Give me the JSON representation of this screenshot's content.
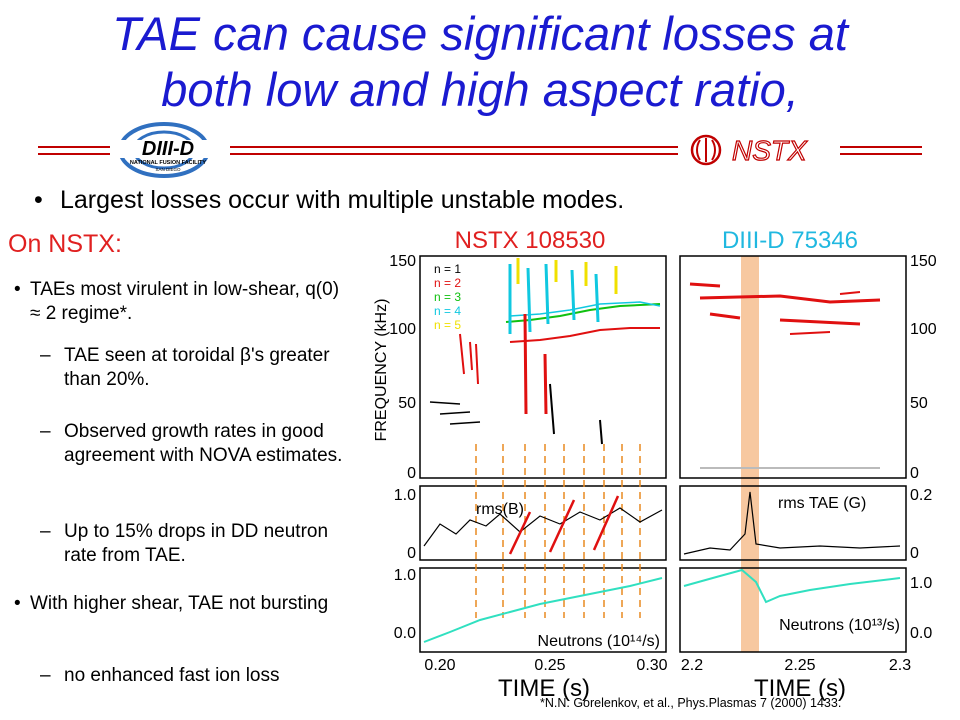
{
  "slide": {
    "title_line1": "TAE can cause significant losses at",
    "title_line2": "both low and high aspect ratio,",
    "logo_left_text": "DIII-D",
    "logo_left_subtext": "NATIONAL FUSION FACILITY",
    "logo_left_subtext2": "SAN DIEGO",
    "logo_right_text": "NSTX",
    "main_bullet": "Largest losses occur with multiple unstable modes.",
    "on_nstx": "On NSTX:",
    "bullets": [
      {
        "text": "TAEs most virulent in low-shear, q(0) ≈ 2 regime*.",
        "sub": [
          "TAE seen at toroidal β's greater than 20%.",
          "Observed growth rates in good agreement with NOVA estimates.",
          "Up to 15% drops in DD neutron rate from TAE."
        ]
      },
      {
        "text": "With higher shear, TAE not bursting",
        "sub": [
          "no enhanced fast ion loss"
        ]
      }
    ],
    "citation": "*N.N. Gorelenkov, et al., Phys.Plasmas 7 (2000) 1433."
  },
  "figure": {
    "left_title": "NSTX 108530",
    "right_title": "DIII-D 75346",
    "ylabel": "FREQUENCY (kHz)",
    "xlabel": "TIME (s)",
    "legend": [
      {
        "label": "n = 1",
        "color": "#000000"
      },
      {
        "label": "n = 2",
        "color": "#e01010"
      },
      {
        "label": "n = 3",
        "color": "#10c010"
      },
      {
        "label": "n = 4",
        "color": "#10c8e0"
      },
      {
        "label": "n = 5",
        "color": "#f0e000"
      }
    ],
    "freq_ticks": [
      "150",
      "100",
      "50",
      "0"
    ],
    "rms_left_label": "rms(B)",
    "rms_left_ticks": [
      "1.0",
      "0"
    ],
    "rms_right_label": "rms TAE (G)",
    "rms_right_ticks": [
      "0.2",
      "0"
    ],
    "neutron_left_label": "Neutrons (10¹⁴/s)",
    "neutron_right_label": "Neutrons (10¹³/s)",
    "neutron_ticks": [
      "1.0",
      "0.0"
    ],
    "x_left_ticks": [
      "0.20",
      "0.25",
      "0.30"
    ],
    "x_right_ticks": [
      "2.2",
      "2.25",
      "2.3"
    ]
  }
}
